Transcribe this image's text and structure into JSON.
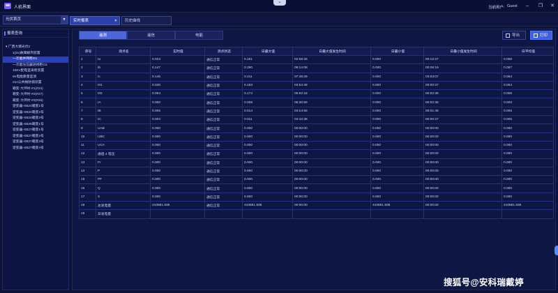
{
  "app": {
    "title": "人机界面",
    "user_label": "当前用户:",
    "user_name": "Guest"
  },
  "topbar": {
    "select_value": "光伏首页",
    "tabs": [
      {
        "label": "实时报表",
        "close": "✕"
      },
      {
        "label": "历史曲线",
        "close": ""
      }
    ]
  },
  "sidebar": {
    "header": "报表查询",
    "items": [
      "▾ 广西大塘光伏2",
      "1(2x)故障解列装置",
      "一次能并网柜G1",
      "一次能左压器进线柜G3",
      "10KV配电室采柜装置",
      "9n电能质量监测",
      "21n公共根防锁装置",
      "箱变-大坪村-#1(#24)",
      "箱变-大坪村-#2(#27)",
      "箱变-大坪村-#3(#26)",
      "逆变器-XB24箱变1号",
      "逆变器-XB24箱变2号",
      "逆变器-XB24箱变3号",
      "逆变器-XB26箱变1号",
      "逆变器-XB27箱变1号",
      "逆变器-XB27箱变2号",
      "逆变器-XB27箱变3号",
      "逆变器-XB27箱变4号"
    ],
    "selected_index": 2
  },
  "main": {
    "segments": [
      "遥测",
      "遥信",
      "电能"
    ],
    "export_label": "导出",
    "print_label": "打印",
    "columns": [
      "序号",
      "测点名",
      "实时值",
      "测点状态",
      "日最大值",
      "日最大值发生时间",
      "日最小值",
      "日最小值发生时间",
      "日平均值"
    ],
    "rows": [
      [
        "1",
        "Ia",
        "0.023",
        "通信正常",
        "0.181",
        "02:59:28",
        "0.000",
        "00:12:27",
        "0.058"
      ],
      [
        "2",
        "Ib",
        "0.147",
        "通信正常",
        "0.290",
        "09:14:08",
        "0.000",
        "00:08:19",
        "0.087"
      ],
      [
        "3",
        "Ic",
        "0.145",
        "通信正常",
        "0.211",
        "07:48:29",
        "0.000",
        "03:03:07",
        "0.064"
      ],
      [
        "4",
        "I01",
        "0.030",
        "通信正常",
        "0.183",
        "03:54:48",
        "0.000",
        "00:00:27",
        "0.054"
      ],
      [
        "5",
        "I02",
        "0.094",
        "通信正常",
        "0.174",
        "05:52:18",
        "0.000",
        "00:02:36",
        "0.058"
      ],
      [
        "6",
        "IA",
        "0.000",
        "通信正常",
        "0.008",
        "06:30:59",
        "0.000",
        "00:02:36",
        "0.003"
      ],
      [
        "7",
        "IB",
        "0.005",
        "通信正常",
        "0.014",
        "03:24:58",
        "0.000",
        "00:01:46",
        "0.005"
      ],
      [
        "8",
        "IC",
        "0.004",
        "通信正常",
        "0.011",
        "03:43:38",
        "0.000",
        "00:00:27",
        "0.005"
      ],
      [
        "9",
        "UAB",
        "0.000",
        "通信正常",
        "0.000",
        "00:00:00",
        "0.000",
        "00:00:00",
        "0.000"
      ],
      [
        "10",
        "UBC",
        "0.000",
        "通信正常",
        "0.000",
        "00:00:00",
        "0.000",
        "00:00:00",
        "0.000"
      ],
      [
        "11",
        "UCA",
        "0.000",
        "通信正常",
        "0.000",
        "00:00:00",
        "0.000",
        "00:00:00",
        "0.000"
      ],
      [
        "12",
        "通道 4 电压",
        "0.000",
        "通信正常",
        "0.000",
        "00:00:00",
        "0.000",
        "00:00:00",
        "0.000"
      ],
      [
        "13",
        "Fr",
        "0.000",
        "通信正常",
        "0.000",
        "00:00:00",
        "0.000",
        "00:00:00",
        "0.000"
      ],
      [
        "14",
        "P",
        "0.000",
        "通信正常",
        "0.000",
        "00:00:00",
        "0.000",
        "00:00:00",
        "0.000"
      ],
      [
        "15",
        "PF",
        "0.000",
        "通信正常",
        "0.000",
        "00:00:00",
        "0.000",
        "00:00:00",
        "0.000"
      ],
      [
        "16",
        "Q",
        "0.000",
        "通信正常",
        "0.000",
        "00:00:00",
        "0.000",
        "00:00:00",
        "0.000"
      ],
      [
        "17",
        "S",
        "0.000",
        "通信正常",
        "0.000",
        "00:00:00",
        "0.000",
        "00:00:00",
        "0.000"
      ],
      [
        "18",
        "总发电量",
        "410881.938",
        "通信正常",
        "410881.938",
        "00:00:00",
        "410881.938",
        "00:00:00",
        "410881.938"
      ],
      [
        "19",
        "日发电量",
        "",
        "",
        "",
        "",
        "",
        "",
        ""
      ]
    ]
  },
  "watermark": "搜狐号@安科瑞戴婷",
  "colors": {
    "background": "#0c1238",
    "accent": "#2a3fa8",
    "primary_button": "#3f5ee0"
  }
}
